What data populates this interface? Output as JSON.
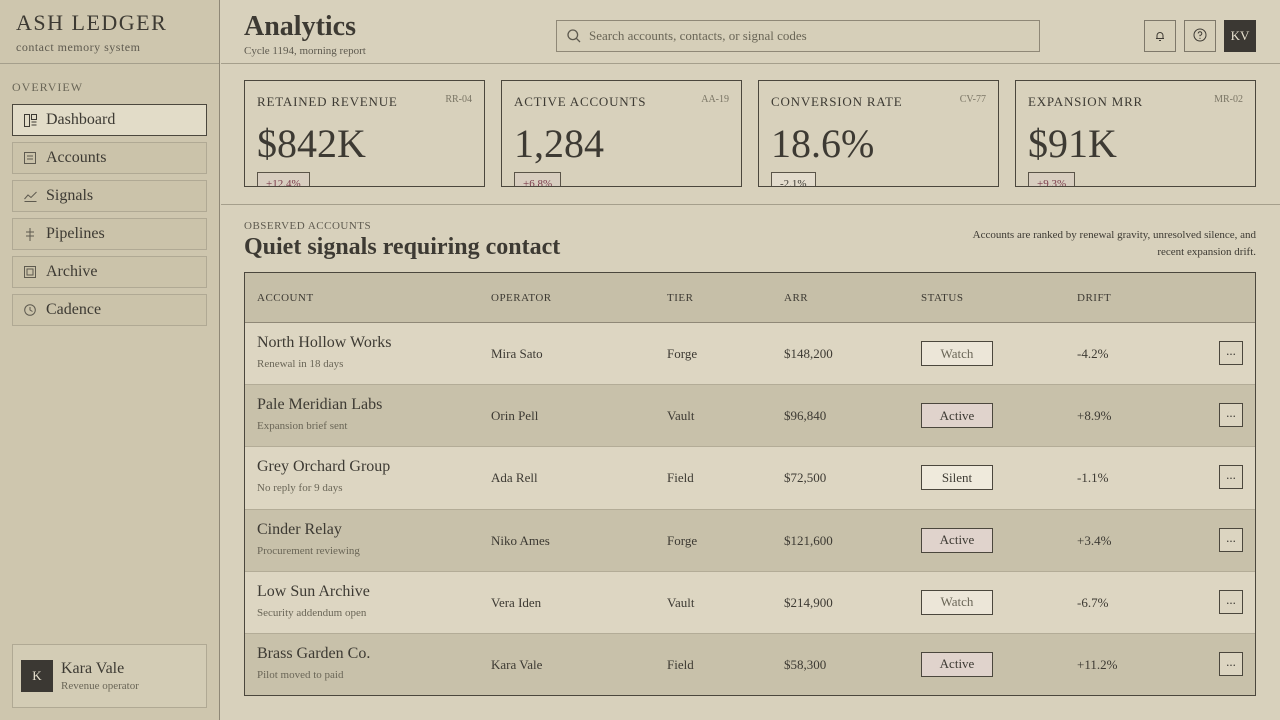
{
  "brand": {
    "name": "ASH LEDGER",
    "subtitle": "contact memory system"
  },
  "nav": {
    "heading": "OVERVIEW",
    "items": [
      {
        "label": "Dashboard",
        "icon": "dashboard-icon",
        "active": true
      },
      {
        "label": "Accounts",
        "icon": "accounts-icon"
      },
      {
        "label": "Signals",
        "icon": "signals-icon"
      },
      {
        "label": "Pipelines",
        "icon": "pipelines-icon"
      },
      {
        "label": "Archive",
        "icon": "archive-icon"
      },
      {
        "label": "Cadence",
        "icon": "clock-icon"
      }
    ]
  },
  "user": {
    "initial": "K",
    "name": "Kara Vale",
    "role": "Revenue operator"
  },
  "header": {
    "title": "Analytics",
    "subtitle": "Cycle 1194, morning report",
    "search_placeholder": "Search accounts, contacts, or signal codes",
    "avatar_initials": "KV"
  },
  "kpis": [
    {
      "label": "RETAINED REVENUE",
      "code": "RR-04",
      "value": "$842K",
      "delta": "+12.4%"
    },
    {
      "label": "ACTIVE ACCOUNTS",
      "code": "AA-19",
      "value": "1,284",
      "delta": "+6.8%"
    },
    {
      "label": "CONVERSION RATE",
      "code": "CV-77",
      "value": "18.6%",
      "delta": "-2.1%"
    },
    {
      "label": "EXPANSION MRR",
      "code": "MR-02",
      "value": "$91K",
      "delta": "+9.3%"
    }
  ],
  "section": {
    "eyebrow": "OBSERVED ACCOUNTS",
    "title": "Quiet signals requiring contact",
    "note": "Accounts are ranked by renewal gravity, unresolved silence, and recent expansion drift."
  },
  "table": {
    "columns": [
      "ACCOUNT",
      "OPERATOR",
      "TIER",
      "ARR",
      "STATUS",
      "DRIFT"
    ],
    "rows": [
      {
        "account": "North Hollow Works",
        "note": "Renewal in 18 days",
        "operator": "Mira Sato",
        "tier": "Forge",
        "arr": "$148,200",
        "status": "Watch",
        "drift": "-4.2%",
        "more": "..."
      },
      {
        "account": "Pale Meridian Labs",
        "note": "Expansion brief sent",
        "operator": "Orin Pell",
        "tier": "Vault",
        "arr": "$96,840",
        "status": "Active",
        "drift": "+8.9%",
        "more": "..."
      },
      {
        "account": "Grey Orchard Group",
        "note": "No reply for 9 days",
        "operator": "Ada Rell",
        "tier": "Field",
        "arr": "$72,500",
        "status": "Silent",
        "drift": "-1.1%",
        "more": "..."
      },
      {
        "account": "Cinder Relay",
        "note": "Procurement reviewing",
        "operator": "Niko Ames",
        "tier": "Forge",
        "arr": "$121,600",
        "status": "Active",
        "drift": "+3.4%",
        "more": "..."
      },
      {
        "account": "Low Sun Archive",
        "note": "Security addendum open",
        "operator": "Vera Iden",
        "tier": "Vault",
        "arr": "$214,900",
        "status": "Watch",
        "drift": "-6.7%",
        "more": "..."
      },
      {
        "account": "Brass Garden Co.",
        "note": "Pilot moved to paid",
        "operator": "Kara Vale",
        "tier": "Field",
        "arr": "$58,300",
        "status": "Active",
        "drift": "+11.2%",
        "more": "..."
      }
    ]
  },
  "colors": {
    "background": "#d8d1bc",
    "sidebar": "#cec6ae",
    "ink": "#3d3a33",
    "accent_delta": "#7a3b4a"
  }
}
